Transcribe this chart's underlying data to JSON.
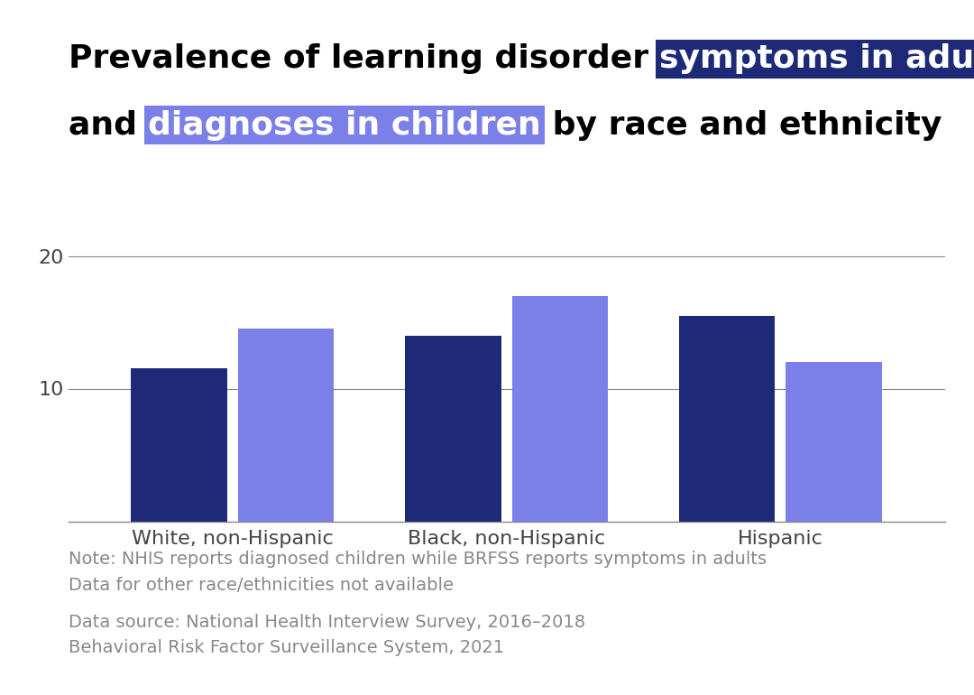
{
  "categories": [
    "White, non-Hispanic",
    "Black, non-Hispanic",
    "Hispanic"
  ],
  "adults_symptoms": [
    11.5,
    14.0,
    15.5
  ],
  "children_diagnoses": [
    14.5,
    17.0,
    12.0
  ],
  "color_adults": "#1e2a78",
  "color_children": "#7b7fe8",
  "highlight_adults_bg": "#1e2a78",
  "highlight_children_bg": "#7b7fe8",
  "ylim": [
    0,
    22
  ],
  "yticks": [
    10,
    20
  ],
  "background_color": "#ffffff",
  "note_line1": "Note: NHIS reports diagnosed children while BRFSS reports symptoms in adults",
  "note_line2": "Data for other race/ethnicities not available",
  "source_line1": "Data source: National Health Interview Survey, 2016–2018",
  "source_line2": "Behavioral Risk Factor Surveillance System, 2021",
  "text_color_note": "#888888",
  "tick_label_color": "#444444",
  "axis_color": "#888888",
  "bar_width": 0.35,
  "title_fontsize": 26,
  "note_fontsize": 14
}
